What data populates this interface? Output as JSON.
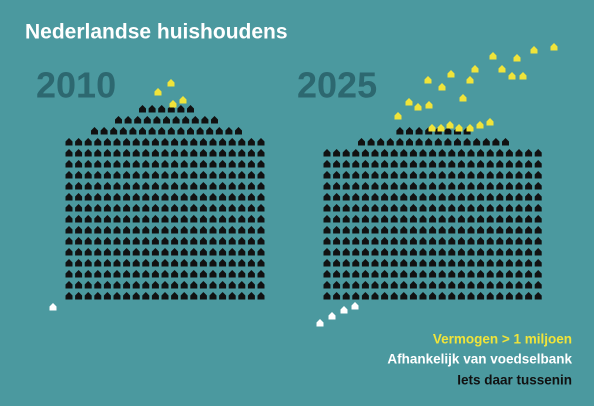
{
  "header": {
    "title": "Nederlandse huishoudens"
  },
  "panels": [
    {
      "year": "2010"
    },
    {
      "year": "2025"
    }
  ],
  "legend": [
    {
      "label": "Vermogen > 1 miljoen",
      "color": "#f0e43a"
    },
    {
      "label": "Afhankelijk van voedselbank",
      "color": "#ffffff"
    },
    {
      "label": "Iets daar tussenin",
      "color": "#111111"
    }
  ]
}
